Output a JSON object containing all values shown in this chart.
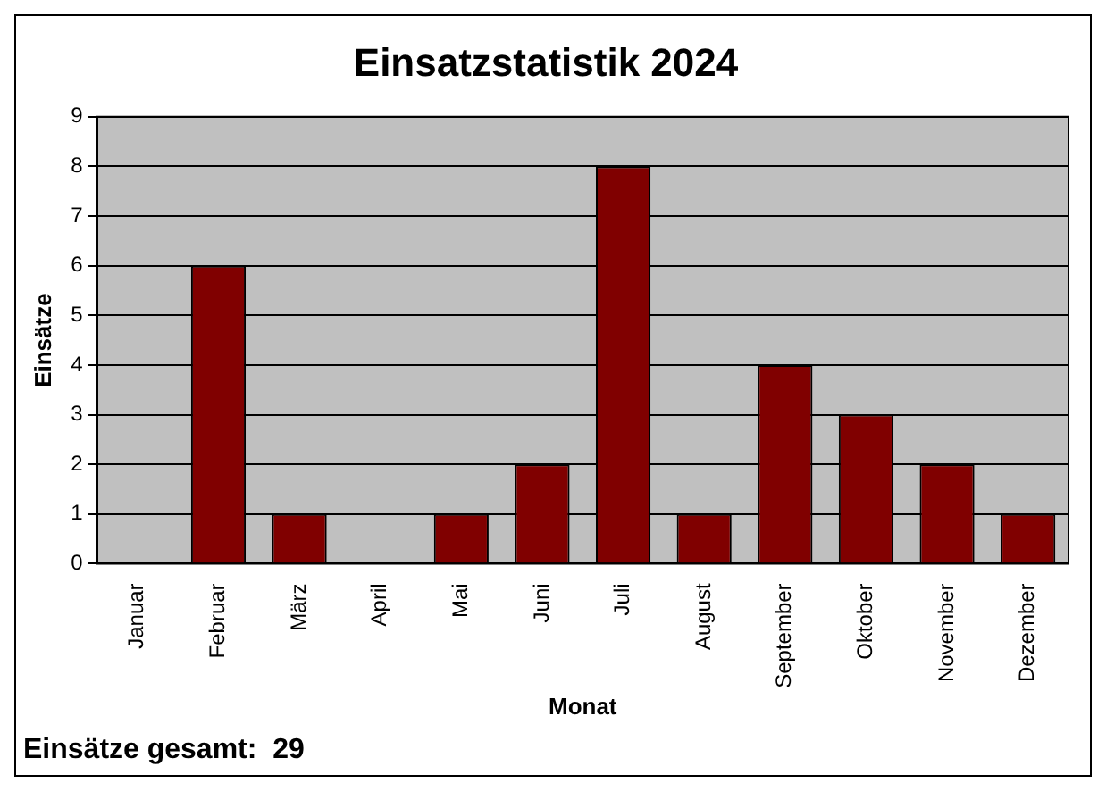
{
  "chart_data": {
    "type": "bar",
    "title": "Einsatzstatistik 2024",
    "xlabel": "Monat",
    "ylabel": "Einsätze",
    "categories": [
      "Januar",
      "Februar",
      "März",
      "April",
      "Mai",
      "Juni",
      "Juli",
      "August",
      "September",
      "Oktober",
      "November",
      "Dezember"
    ],
    "values": [
      0,
      6,
      1,
      0,
      1,
      2,
      8,
      1,
      4,
      3,
      2,
      1
    ],
    "color": "#800000",
    "ylim": [
      0,
      9
    ],
    "yticks": [
      0,
      1,
      2,
      3,
      4,
      5,
      6,
      7,
      8,
      9
    ],
    "grid": "y",
    "legend": false,
    "annotations": [
      "Einsätze gesamt:  29"
    ]
  }
}
